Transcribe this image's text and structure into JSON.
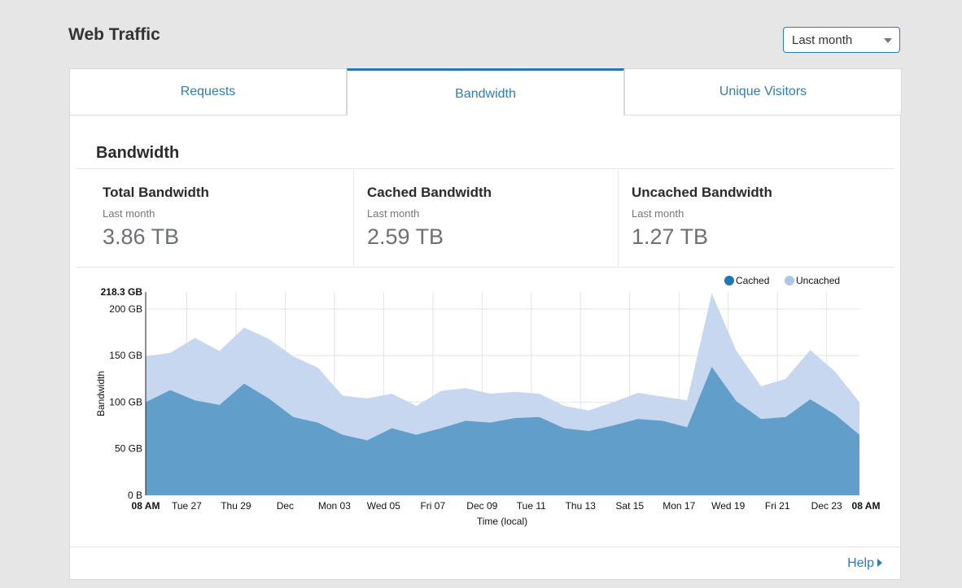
{
  "header": {
    "title": "Web Traffic",
    "range_select": "Last month"
  },
  "tabs": [
    {
      "label": "Requests",
      "active": false
    },
    {
      "label": "Bandwidth",
      "active": true
    },
    {
      "label": "Unique Visitors",
      "active": false
    }
  ],
  "section": {
    "title": "Bandwidth"
  },
  "stats": [
    {
      "title": "Total Bandwidth",
      "subtitle": "Last month",
      "value": "3.86 TB"
    },
    {
      "title": "Cached Bandwidth",
      "subtitle": "Last month",
      "value": "2.59 TB"
    },
    {
      "title": "Uncached Bandwidth",
      "subtitle": "Last month",
      "value": "1.27 TB"
    }
  ],
  "footer": {
    "help": "Help"
  },
  "colors": {
    "accent": "#2f7cb6",
    "cached_fill": "#619ec9",
    "uncached_fill": "#c7d7ef",
    "cached_legend": "#1f77b4",
    "uncached_legend": "#aec7e8"
  },
  "chart_data": {
    "type": "area",
    "stacked": true,
    "xlabel": "Time (local)",
    "ylabel": "Bandwidth",
    "ylim": [
      0,
      218.3
    ],
    "y_unit": "GB",
    "y_ticks": [
      {
        "v": 0,
        "label": "0 B"
      },
      {
        "v": 50,
        "label": "50 GB"
      },
      {
        "v": 100,
        "label": "100 GB"
      },
      {
        "v": 150,
        "label": "150 GB"
      },
      {
        "v": 200,
        "label": "200 GB"
      },
      {
        "v": 218.3,
        "label": "218.3 GB",
        "bold": true
      }
    ],
    "x_unit": "days since start",
    "xlim": [
      0,
      29
    ],
    "x_ticks": [
      {
        "v": 0,
        "label": "08 AM",
        "bold": true
      },
      {
        "v": 1.667,
        "label": "Tue 27"
      },
      {
        "v": 3.667,
        "label": "Thu 29"
      },
      {
        "v": 5.667,
        "label": "Dec"
      },
      {
        "v": 7.667,
        "label": "Mon 03"
      },
      {
        "v": 9.667,
        "label": "Wed 05"
      },
      {
        "v": 11.667,
        "label": "Fri 07"
      },
      {
        "v": 13.667,
        "label": "Dec 09"
      },
      {
        "v": 15.667,
        "label": "Tue 11"
      },
      {
        "v": 17.667,
        "label": "Thu 13"
      },
      {
        "v": 19.667,
        "label": "Sat 15"
      },
      {
        "v": 21.667,
        "label": "Mon 17"
      },
      {
        "v": 23.667,
        "label": "Wed 19"
      },
      {
        "v": 25.667,
        "label": "Fri 21"
      },
      {
        "v": 27.667,
        "label": "Dec 23"
      },
      {
        "v": 29,
        "label": "08 AM",
        "bold": true
      }
    ],
    "legend": {
      "position": "top-right"
    },
    "series": [
      {
        "name": "Cached",
        "values": [
          100,
          113,
          102,
          97,
          120,
          104,
          84,
          78,
          65,
          59,
          72,
          65,
          72,
          80,
          78,
          83,
          84,
          72,
          69,
          75,
          82,
          80,
          73,
          138,
          101,
          82,
          84,
          103,
          87,
          65
        ]
      },
      {
        "name": "Uncached",
        "values": [
          49,
          40,
          67,
          58,
          60,
          64,
          65,
          59,
          42,
          45,
          37,
          31,
          40,
          35,
          31,
          28,
          25,
          24,
          22,
          25,
          28,
          26,
          29,
          79,
          54,
          35,
          41,
          53,
          46,
          35
        ]
      }
    ]
  }
}
